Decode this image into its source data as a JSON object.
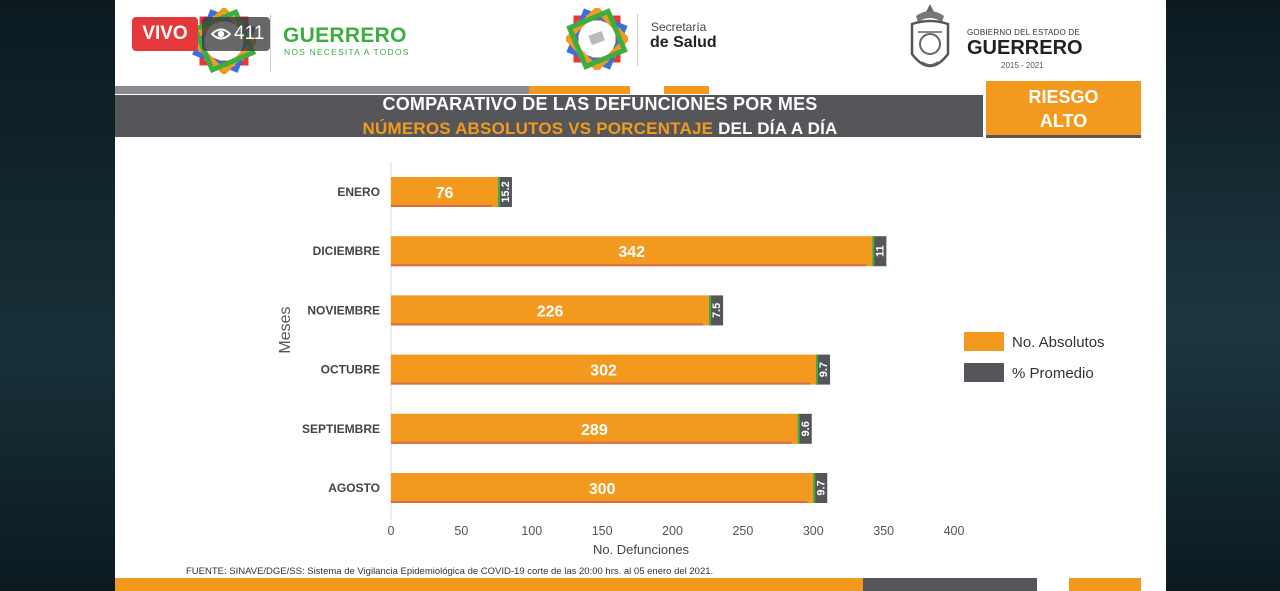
{
  "live": {
    "label": "VIVO",
    "viewers": "411"
  },
  "header": {
    "brand_name": "GUERRERO",
    "brand_tagline": "NOS NECESITA A TODOS",
    "secretaria_line1": "Secretaría",
    "secretaria_line2": "de Salud",
    "gobierno_line1": "GOBIERNO DEL ESTADO DE",
    "gobierno_line2": "GUERRERO",
    "gobierno_years": "2015 - 2021"
  },
  "title": {
    "line1": "COMPARATIVO DE LAS DEFUNCIONES POR MES",
    "line2_highlight": "NÚMEROS ABSOLUTOS VS PORCENTAJE",
    "line2_rest": " DEL DÍA A DÍA"
  },
  "risk": {
    "line1": "RIESGO",
    "line2": "ALTO"
  },
  "colors": {
    "orange": "#f39a1e",
    "gray": "#55565a",
    "green": "#3cae3f",
    "live_red": "#e5383b"
  },
  "chart_data": {
    "type": "bar",
    "orientation": "horizontal",
    "categories": [
      "ENERO",
      "DICIEMBRE",
      "NOVIEMBRE",
      "OCTUBRE",
      "SEPTIEMBRE",
      "AGOSTO"
    ],
    "series": [
      {
        "name": "No. Absolutos",
        "values": [
          76,
          342,
          226,
          302,
          289,
          300
        ],
        "color": "#f39a1e"
      },
      {
        "name": "% Promedio",
        "values": [
          15.2,
          11,
          7.5,
          9.7,
          9.6,
          9.7
        ],
        "color": "#55565a"
      }
    ],
    "xlabel": "No. Defunciones",
    "ylabel": "Meses",
    "xlim": [
      0,
      400
    ],
    "xticks": [
      0,
      50,
      100,
      150,
      200,
      250,
      300,
      350,
      400
    ],
    "legend": "right"
  },
  "source": "FUENTE: SINAVE/DGE/SS: Sistema de Vigilancia Epidemiológica de COVID-19 corte de las 20:00 hrs. al 05 enero del 2021."
}
